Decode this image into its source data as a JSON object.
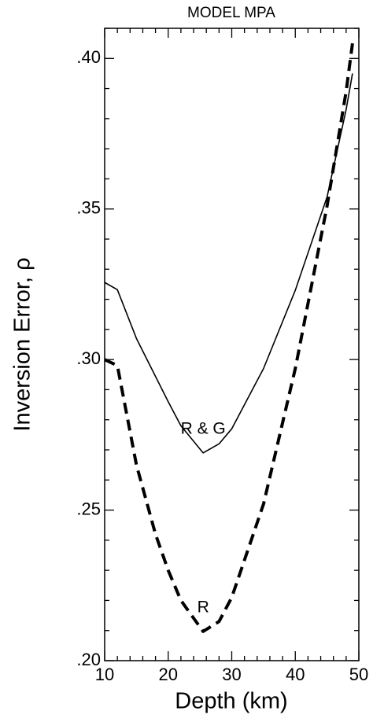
{
  "chart_data": {
    "type": "line",
    "title": "MODEL MPA",
    "x_label": "Depth  (km)",
    "y_label": "Inversion Error,   ρ",
    "xlim": [
      10,
      50
    ],
    "ylim": [
      0.2,
      0.41
    ],
    "xticks": [
      10,
      20,
      30,
      40,
      50
    ],
    "yticks": [
      {
        "value": 0.2,
        "label": ".20"
      },
      {
        "value": 0.25,
        "label": ".25"
      },
      {
        "value": 0.3,
        "label": ".30"
      },
      {
        "value": 0.35,
        "label": ".35"
      },
      {
        "value": 0.4,
        "label": ".40"
      }
    ],
    "xminorticks": [
      12,
      14,
      16,
      18,
      22,
      24,
      26,
      28,
      32,
      34,
      36,
      38,
      42,
      44,
      46,
      48
    ],
    "yminorticks": [
      0.21,
      0.22,
      0.23,
      0.24,
      0.26,
      0.27,
      0.28,
      0.29,
      0.31,
      0.32,
      0.33,
      0.34,
      0.36,
      0.37,
      0.38,
      0.39,
      0.41
    ],
    "series": [
      {
        "name": "R & G",
        "color": "#000000",
        "dashed": false,
        "x": [
          10,
          12,
          15,
          20,
          22,
          25.5,
          28,
          30,
          35,
          40,
          45,
          48,
          49
        ],
        "values": [
          0.3256,
          0.3232,
          0.307,
          0.286,
          0.278,
          0.269,
          0.272,
          0.277,
          0.297,
          0.323,
          0.354,
          0.383,
          0.395
        ]
      },
      {
        "name": "R",
        "color": "#000000",
        "dashed": true,
        "x": [
          10,
          12,
          15,
          18,
          20,
          22,
          25.5,
          28,
          30,
          35,
          40,
          45,
          48,
          49
        ],
        "values": [
          0.3,
          0.298,
          0.265,
          0.242,
          0.23,
          0.22,
          0.2097,
          0.213,
          0.221,
          0.252,
          0.297,
          0.351,
          0.389,
          0.405
        ]
      }
    ]
  }
}
